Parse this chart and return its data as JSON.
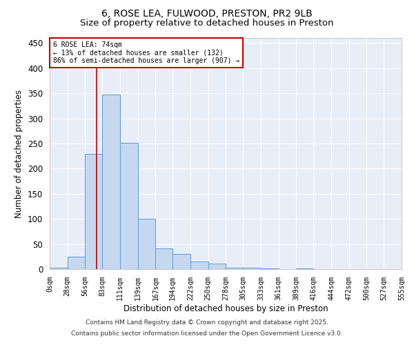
{
  "title": "6, ROSE LEA, FULWOOD, PRESTON, PR2 9LB",
  "subtitle": "Size of property relative to detached houses in Preston",
  "xlabel": "Distribution of detached houses by size in Preston",
  "ylabel": "Number of detached properties",
  "bar_edges": [
    0,
    28,
    56,
    83,
    111,
    139,
    167,
    194,
    222,
    250,
    278,
    305,
    333,
    361,
    389,
    416,
    444,
    472,
    500,
    527,
    555
  ],
  "bar_heights": [
    3,
    25,
    230,
    348,
    251,
    100,
    41,
    30,
    15,
    11,
    3,
    3,
    1,
    0,
    1,
    0,
    0,
    0,
    0,
    0
  ],
  "bar_color": "#c5d8f0",
  "bar_edgecolor": "#5b9bd5",
  "vline_x": 74,
  "vline_color": "#c00000",
  "ylim": [
    0,
    460
  ],
  "yticks": [
    0,
    50,
    100,
    150,
    200,
    250,
    300,
    350,
    400,
    450
  ],
  "annotation_title": "6 ROSE LEA: 74sqm",
  "annotation_line1": "← 13% of detached houses are smaller (132)",
  "annotation_line2": "86% of semi-detached houses are larger (907) →",
  "annotation_box_color": "#c00000",
  "background_color": "#e8eef8",
  "footer1": "Contains HM Land Registry data © Crown copyright and database right 2025.",
  "footer2": "Contains public sector information licensed under the Open Government Licence v3.0.",
  "title_fontsize": 10,
  "subtitle_fontsize": 9.5,
  "tick_label_fontsize": 7,
  "ylabel_fontsize": 8.5,
  "xlabel_fontsize": 8.5,
  "footer_fontsize": 6.5
}
